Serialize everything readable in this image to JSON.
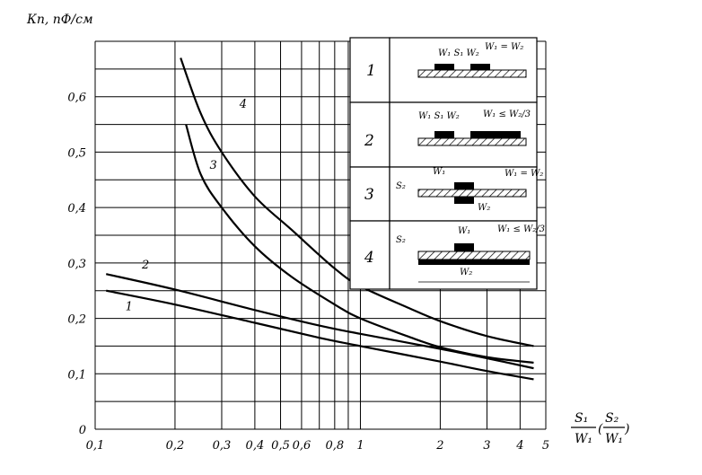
{
  "chart_data": {
    "type": "line",
    "title": "",
    "ylabel": "Кп, пФ/см",
    "xlabel_num": "S₁",
    "xlabel_den": "W₁",
    "xlabel_alt_num": "S₂",
    "xlabel_alt_den": "W₁",
    "x_scale": "log",
    "xlim": [
      0.1,
      5
    ],
    "ylim": [
      0,
      0.7
    ],
    "x_ticks": [
      {
        "value": 0.1,
        "label": "0,1"
      },
      {
        "value": 0.2,
        "label": "0,2"
      },
      {
        "value": 0.3,
        "label": "0,3"
      },
      {
        "value": 0.4,
        "label": "0,4"
      },
      {
        "value": 0.5,
        "label": "0,5"
      },
      {
        "value": 0.6,
        "label": "0,6"
      },
      {
        "value": 0.8,
        "label": "0,8"
      },
      {
        "value": 1,
        "label": "1"
      },
      {
        "value": 2,
        "label": "2"
      },
      {
        "value": 3,
        "label": "3"
      },
      {
        "value": 4,
        "label": "4"
      },
      {
        "value": 5,
        "label": "5"
      }
    ],
    "y_ticks": [
      {
        "value": 0,
        "label": "0"
      },
      {
        "value": 0.1,
        "label": "0,1"
      },
      {
        "value": 0.2,
        "label": "0,2"
      },
      {
        "value": 0.3,
        "label": "0,3"
      },
      {
        "value": 0.4,
        "label": "0,4"
      },
      {
        "value": 0.5,
        "label": "0,5"
      },
      {
        "value": 0.6,
        "label": "0,6"
      }
    ],
    "grid": true,
    "series": [
      {
        "name": "1",
        "x": [
          0.11,
          0.2,
          0.4,
          0.7,
          1,
          2,
          3,
          4.5
        ],
        "y": [
          0.25,
          0.225,
          0.192,
          0.165,
          0.15,
          0.122,
          0.105,
          0.09
        ]
      },
      {
        "name": "2",
        "x": [
          0.11,
          0.2,
          0.4,
          0.7,
          1,
          2,
          3,
          4.5
        ],
        "y": [
          0.28,
          0.252,
          0.215,
          0.187,
          0.172,
          0.145,
          0.128,
          0.11
        ]
      },
      {
        "name": "3",
        "x": [
          0.22,
          0.25,
          0.3,
          0.4,
          0.55,
          0.8,
          1,
          1.5,
          2,
          3,
          4.5
        ],
        "y": [
          0.55,
          0.46,
          0.4,
          0.33,
          0.275,
          0.225,
          0.2,
          0.168,
          0.148,
          0.13,
          0.12
        ]
      },
      {
        "name": "4",
        "x": [
          0.21,
          0.25,
          0.3,
          0.4,
          0.55,
          0.8,
          1,
          1.5,
          2,
          3,
          4.5
        ],
        "y": [
          0.67,
          0.57,
          0.5,
          0.42,
          0.36,
          0.29,
          0.258,
          0.22,
          0.195,
          0.168,
          0.15
        ]
      }
    ]
  },
  "inset": {
    "panels": [
      {
        "num": "1",
        "lines": [
          "W₁ = W₂",
          "W₁  S₁  W₂"
        ]
      },
      {
        "num": "2",
        "lines": [
          "W₁ ≤ W₂/3",
          "W₁   S₁   W₂"
        ]
      },
      {
        "num": "3",
        "lines": [
          "W₁ = W₂",
          "W₁",
          "W₂",
          "S₂"
        ]
      },
      {
        "num": "4",
        "lines": [
          "W₁ ≤ W₂/3",
          "W₁",
          "W₂",
          "S₂"
        ]
      }
    ]
  }
}
